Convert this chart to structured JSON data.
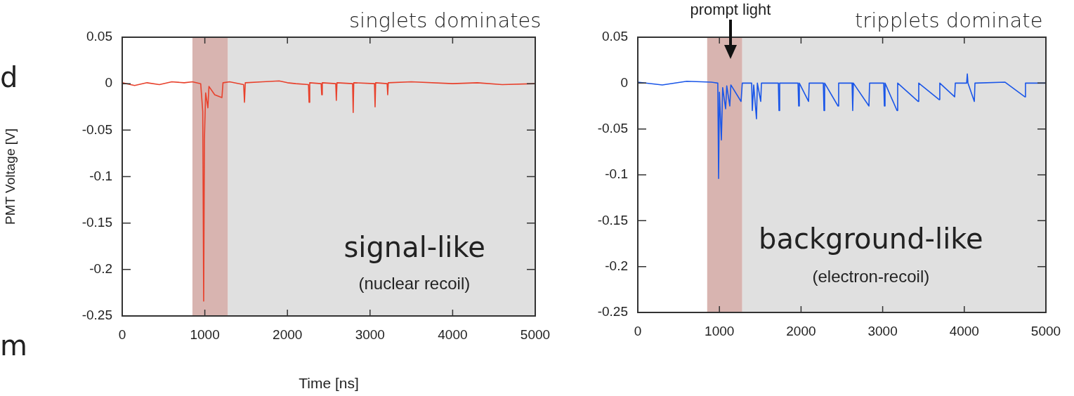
{
  "chart_data": [
    {
      "type": "line",
      "title": "singlets dominates",
      "xlabel": "Time [ns]",
      "ylabel": "PMT Voltage [V]",
      "xlim": [
        0,
        5000
      ],
      "xticks": [
        0,
        1000,
        2000,
        3000,
        4000,
        5000
      ],
      "ylim": [
        -0.25,
        0.05
      ],
      "yticks": [
        0.05,
        0,
        -0.05,
        -0.1,
        -0.15,
        -0.2,
        -0.25
      ],
      "grid": false,
      "legend": false,
      "marker": "none",
      "bands": [
        {
          "axis": "x",
          "from": 850,
          "to": 1280,
          "color": "#d8b4b0"
        },
        {
          "axis": "x",
          "from": 1280,
          "to": 5000,
          "color": "#e0e0e0"
        }
      ],
      "series": [
        {
          "color": "#e8412c",
          "x": [
            0,
            150,
            300,
            450,
            600,
            750,
            850,
            950,
            975,
            986,
            995,
            1010,
            1037,
            1050,
            1120,
            1207,
            1220,
            1300,
            1470,
            1480,
            1490,
            1700,
            1900,
            2000,
            2100,
            2255,
            2262,
            2270,
            2408,
            2415,
            2422,
            2585,
            2592,
            2600,
            2789,
            2796,
            2803,
            3054,
            3061,
            3068,
            3207,
            3214,
            3221,
            3500,
            4000,
            4300,
            4600,
            5000
          ],
          "values": [
            0.001,
            -0.002,
            0.001,
            -0.001,
            0.002,
            0.001,
            0.002,
            0,
            -0.03,
            -0.234,
            -0.06,
            -0.01,
            -0.026,
            -0.003,
            -0.012,
            -0.015,
            0.001,
            0.002,
            -0.001,
            -0.02,
            0.001,
            0.002,
            0.003,
            0.001,
            0,
            -0.001,
            -0.02,
            0.001,
            0,
            -0.012,
            0.001,
            0,
            -0.018,
            0.001,
            0,
            -0.031,
            0.001,
            0,
            -0.025,
            0.001,
            0,
            -0.012,
            0.001,
            0.002,
            0,
            0.001,
            -0.001,
            0
          ]
        }
      ],
      "annotations": [
        "signal-like",
        "(nuclear recoil)",
        "d",
        "m"
      ]
    },
    {
      "type": "line",
      "title": "tripplets dominate",
      "xlim": [
        0,
        5000
      ],
      "xticks": [
        0,
        1000,
        2000,
        3000,
        4000,
        5000
      ],
      "ylim": [
        -0.25,
        0.05
      ],
      "yticks": [
        0.05,
        0,
        -0.05,
        -0.1,
        -0.15,
        -0.2,
        -0.25
      ],
      "grid": false,
      "legend": false,
      "marker": "none",
      "bands": [
        {
          "axis": "x",
          "from": 850,
          "to": 1280,
          "color": "#d8b4b0"
        },
        {
          "axis": "x",
          "from": 1280,
          "to": 5000,
          "color": "#e0e0e0"
        }
      ],
      "series": [
        {
          "color": "#1a56e8",
          "x": [
            0,
            300,
            600,
            900,
            980,
            990,
            1000,
            1024,
            1040,
            1076,
            1090,
            1127,
            1140,
            1265,
            1280,
            1395,
            1403,
            1420,
            1454,
            1465,
            1506,
            1515,
            1722,
            1730,
            1738,
            1963,
            1971,
            1979,
            2092,
            2100,
            2273,
            2281,
            2289,
            2453,
            2461,
            2625,
            2633,
            2641,
            2832,
            2840,
            3013,
            3021,
            3029,
            3176,
            3184,
            3434,
            3442,
            3692,
            3700,
            3882,
            3890,
            4029,
            4037,
            4045,
            4123,
            4131,
            4500,
            4742,
            4750,
            5000
          ],
          "values": [
            0.001,
            -0.002,
            0.002,
            0.001,
            0,
            -0.104,
            -0.01,
            -0.062,
            -0.005,
            -0.028,
            -0.003,
            -0.025,
            -0.002,
            -0.02,
            0,
            0,
            -0.03,
            -0.002,
            -0.039,
            0,
            -0.02,
            0,
            0,
            -0.03,
            0,
            0,
            -0.025,
            0,
            -0.02,
            0,
            0,
            -0.03,
            0,
            -0.025,
            0,
            0,
            -0.03,
            0,
            -0.025,
            0,
            0,
            -0.025,
            0,
            -0.03,
            0,
            -0.02,
            0,
            -0.018,
            0,
            -0.015,
            0,
            0,
            0.01,
            0,
            -0.02,
            0,
            0.001,
            -0.015,
            0,
            0
          ]
        }
      ],
      "annotations": [
        "prompt light",
        "background-like",
        "(electron-recoil)"
      ]
    }
  ]
}
